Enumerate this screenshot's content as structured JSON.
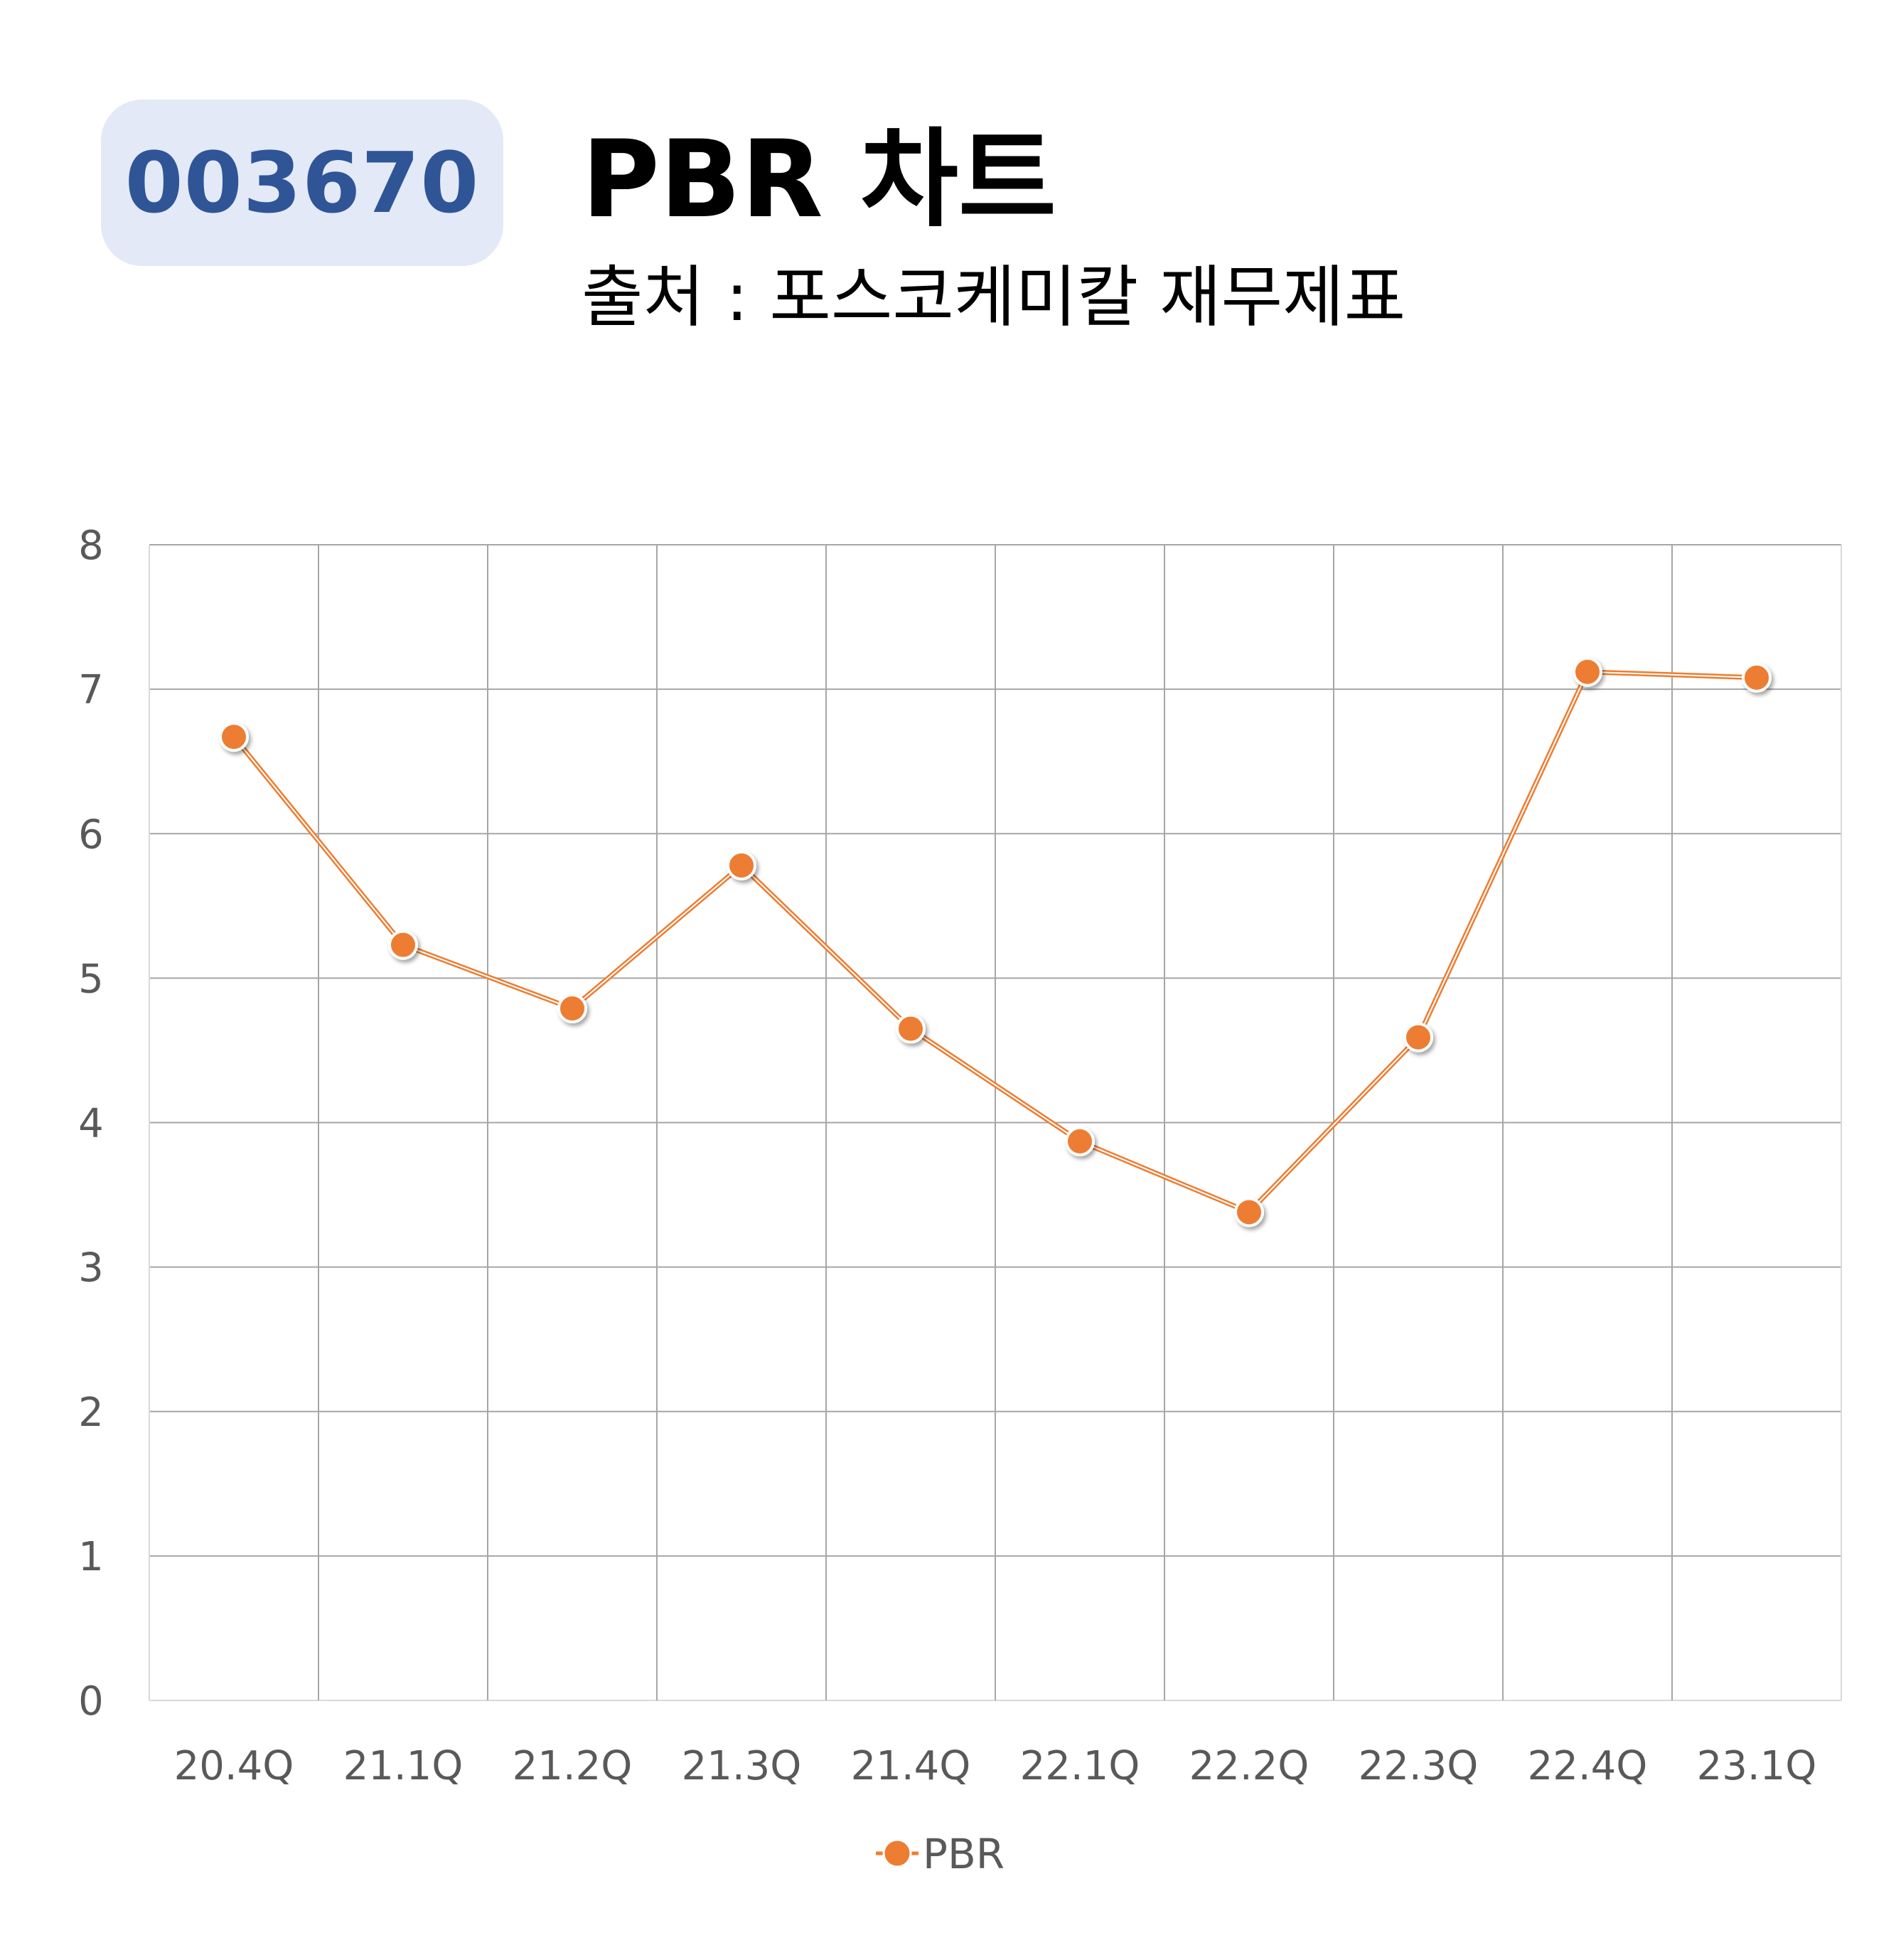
{
  "header": {
    "stock_code": "003670",
    "title": "PBR 차트",
    "subtitle": "출처 : 포스코케미칼 재무제표"
  },
  "colors": {
    "series": "#ed7d31",
    "badge_bg": "#e3e9f6",
    "badge_text": "#2f5597",
    "grid": "#a6a6a6",
    "tick_text": "#595959"
  },
  "chart_data": {
    "type": "line",
    "title": "PBR 차트",
    "xlabel": "",
    "ylabel": "",
    "categories": [
      "20.4Q",
      "21.1Q",
      "21.2Q",
      "21.3Q",
      "21.4Q",
      "22.1Q",
      "22.2Q",
      "22.3Q",
      "22.4Q",
      "23.1Q"
    ],
    "series": [
      {
        "name": "PBR",
        "values": [
          6.67,
          5.23,
          4.79,
          5.78,
          4.65,
          3.87,
          3.38,
          4.59,
          7.12,
          7.08
        ]
      }
    ],
    "ylim": [
      0,
      8
    ],
    "yticks": [
      "0",
      "1",
      "2",
      "3",
      "4",
      "5",
      "6",
      "7",
      "8"
    ],
    "grid": true,
    "legend": "bottom-center",
    "markers": true
  }
}
